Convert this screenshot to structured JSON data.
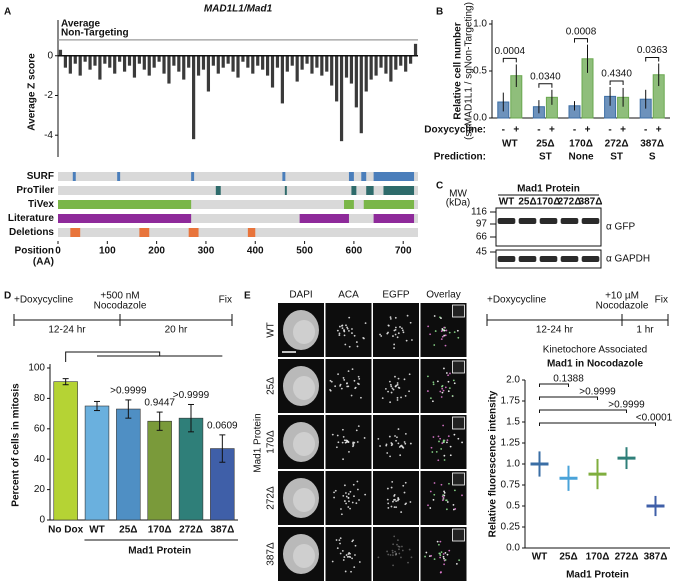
{
  "panels": [
    "A",
    "B",
    "C",
    "D",
    "E"
  ],
  "chart_data": [
    {
      "type": "bar",
      "title": "MAD1L1/Mad1",
      "ylabel": "Average Z score",
      "x": [
        5,
        15,
        25,
        35,
        45,
        55,
        65,
        75,
        85,
        95,
        105,
        115,
        125,
        135,
        145,
        155,
        165,
        175,
        185,
        195,
        205,
        215,
        225,
        235,
        245,
        255,
        265,
        275,
        285,
        295,
        305,
        315,
        325,
        335,
        345,
        355,
        365,
        375,
        385,
        395,
        405,
        415,
        425,
        435,
        445,
        455,
        465,
        475,
        485,
        495,
        505,
        515,
        525,
        535,
        545,
        555,
        565,
        575,
        585,
        595,
        605,
        615,
        625,
        635,
        645,
        655,
        665,
        675,
        685,
        695,
        705,
        715,
        725
      ],
      "values": [
        0.3,
        -0.6,
        -0.9,
        -0.4,
        -1.0,
        -0.3,
        -0.7,
        -0.5,
        -1.2,
        -0.4,
        -0.6,
        -0.9,
        -0.3,
        -0.8,
        -0.5,
        -1.1,
        -0.4,
        -0.7,
        -1.0,
        -0.6,
        -0.3,
        -0.9,
        -1.4,
        -0.5,
        -0.8,
        -1.2,
        -0.6,
        -4.2,
        -1.0,
        -0.7,
        -1.8,
        -0.5,
        -0.9,
        -0.6,
        -0.4,
        -0.8,
        -1.1,
        -0.3,
        -0.6,
        -0.9,
        -0.5,
        -0.7,
        -1.0,
        -1.6,
        -0.6,
        -2.4,
        -0.8,
        -0.5,
        -1.3,
        -0.7,
        -0.4,
        -0.9,
        -0.6,
        -1.0,
        -0.8,
        -1.5,
        -2.3,
        -4.3,
        -1.1,
        -1.4,
        -2.6,
        -3.9,
        -1.8,
        -1.2,
        -1.0,
        -0.6,
        -0.9,
        -1.3,
        -0.7,
        -0.5,
        -0.8,
        -0.4,
        0.6
      ],
      "color": "#3a3a3a",
      "ylim": [
        -5.5,
        1.8
      ],
      "yticks": [
        -4,
        -2,
        0
      ],
      "xlim": [
        0,
        730
      ],
      "xticks": [
        0,
        100,
        200,
        300,
        400,
        500,
        600,
        700
      ],
      "xlabel": "Position",
      "xlabel_unit": "(AA)",
      "reference_line": 0.8,
      "reference_label": [
        "Average",
        "Non-Targeting"
      ],
      "tracks": [
        {
          "name": "SURF",
          "color": "#4a7ebb",
          "segments": [
            [
              30,
              36
            ],
            [
              120,
              126
            ],
            [
              270,
              276
            ],
            [
              455,
              461
            ],
            [
              590,
              600
            ],
            [
              615,
              625
            ],
            [
              640,
              722
            ]
          ]
        },
        {
          "name": "ProTiler",
          "color": "#2e6b6b",
          "segments": [
            [
              320,
              330
            ],
            [
              460,
              464
            ],
            [
              595,
              605
            ],
            [
              625,
              640
            ],
            [
              660,
              722
            ]
          ]
        },
        {
          "name": "TiVex",
          "color": "#7ab648",
          "segments": [
            [
              0,
              270
            ],
            [
              580,
              600
            ],
            [
              620,
              722
            ]
          ]
        },
        {
          "name": "Literature",
          "color": "#8e2a9a",
          "segments": [
            [
              0,
              270
            ],
            [
              490,
              590
            ],
            [
              640,
              722
            ]
          ]
        },
        {
          "name": "Deletions",
          "color": "#e8743b",
          "segments": [
            [
              25,
              45
            ],
            [
              165,
              185
            ],
            [
              265,
              285
            ],
            [
              385,
              400
            ]
          ]
        }
      ]
    },
    {
      "type": "bar",
      "ylabel": [
        "Relative cell number",
        "(sgMAD1L1 / sgNon-Targeting)"
      ],
      "categories": [
        "WT",
        "25Δ",
        "170Δ",
        "272Δ",
        "387Δ"
      ],
      "series": [
        {
          "name": "-",
          "color": "#3c6ea5",
          "values": [
            0.17,
            0.12,
            0.13,
            0.23,
            0.2
          ],
          "errors": [
            0.1,
            0.07,
            0.05,
            0.1,
            0.1
          ]
        },
        {
          "name": "+",
          "color": "#6aa84f",
          "values": [
            0.45,
            0.22,
            0.63,
            0.22,
            0.46
          ],
          "errors": [
            0.12,
            0.08,
            0.15,
            0.1,
            0.12
          ]
        }
      ],
      "row_label": "Doxycycline:",
      "prediction_label": "Prediction:",
      "predictions": [
        null,
        "ST",
        "None",
        "ST",
        "S"
      ],
      "p_values": [
        "0.0004",
        "0.0340",
        "0.0008",
        "0.4340",
        "0.0363"
      ],
      "ylim": [
        0,
        1.0
      ],
      "yticks": [
        {
          "value": 0,
          "label": "0.0"
        },
        {
          "value": 0.5,
          "label": "0.5"
        },
        {
          "value": 1,
          "label": "1.0"
        }
      ]
    },
    {
      "type": "bar",
      "ylabel": "Percent of cells in mitosis",
      "xlabel": "Mad1 Protein",
      "categories": [
        "No Dox",
        "WT",
        "25Δ",
        "170Δ",
        "272Δ",
        "387Δ"
      ],
      "values": [
        91,
        75,
        73,
        65,
        67,
        47
      ],
      "errors": [
        2,
        3,
        6,
        6,
        9,
        9
      ],
      "colors": [
        "#b5d334",
        "#6ab0de",
        "#4f8fc4",
        "#7a9a3a",
        "#2f7f79",
        "#3f5fa8"
      ],
      "ylim": [
        0,
        100
      ],
      "yticks": [
        0,
        20,
        40,
        60,
        80,
        100
      ],
      "p_values": [
        null,
        null,
        ">0.9999",
        "0.9447",
        ">0.9999",
        "0.0609"
      ]
    },
    {
      "type": "dot",
      "title": "Kinetochore Associated",
      "subtitle": "Mad1 in Nocodazole",
      "ylabel": "Relative fluorescence intensity",
      "xlabel": "Mad1 Protein",
      "categories": [
        "WT",
        "25Δ",
        "170Δ",
        "272Δ",
        "387Δ"
      ],
      "values": [
        1.0,
        0.83,
        0.88,
        1.07,
        0.5
      ],
      "errors": [
        0.15,
        0.15,
        0.18,
        0.13,
        0.12
      ],
      "colors": [
        "#3a6ea5",
        "#4aa3d9",
        "#7fae3e",
        "#2f7f79",
        "#3f5fa8"
      ],
      "ylim": [
        0,
        2.0
      ],
      "yticks": [
        {
          "value": 0,
          "label": "0.0"
        },
        0.25,
        0.5,
        0.75,
        {
          "value": 1,
          "label": "1.0"
        },
        1.25,
        1.5,
        1.75,
        {
          "value": 2,
          "label": "2.0"
        }
      ],
      "p_values": [
        null,
        "0.1388",
        ">0.9999",
        ">0.9999",
        "<0.0001"
      ]
    }
  ],
  "blot": {
    "mw_label": "MW",
    "mw_unit": "(kDa)",
    "mw": [
      116,
      97,
      66,
      45
    ],
    "header": "Mad1 Protein",
    "lanes": [
      "WT",
      "25Δ",
      "170Δ",
      "272Δ",
      "387Δ"
    ],
    "antibodies": [
      "α GFP",
      "α GAPDH"
    ]
  },
  "timeline_d": {
    "start": "+Doxycycline",
    "middle": [
      "+500 nM",
      "Nocodazole"
    ],
    "end": "Fix",
    "durations": [
      "12-24 hr",
      "20 hr"
    ]
  },
  "timeline_e": {
    "start": "+Doxycycline",
    "middle": [
      "+10 µM",
      "Nocodazole"
    ],
    "end": "Fix",
    "durations": [
      "12-24 hr",
      "1 hr"
    ]
  },
  "micrographs": {
    "columns": [
      "DAPI",
      "ACA",
      "EGFP",
      "Overlay"
    ],
    "column_colors": [
      "#222222",
      "#d63fb4",
      "#3aa84a",
      "#3aa84a"
    ],
    "rows": [
      "WT",
      "25Δ",
      "170Δ",
      "272Δ",
      "387Δ"
    ],
    "row_title": "Mad1 Protein"
  }
}
